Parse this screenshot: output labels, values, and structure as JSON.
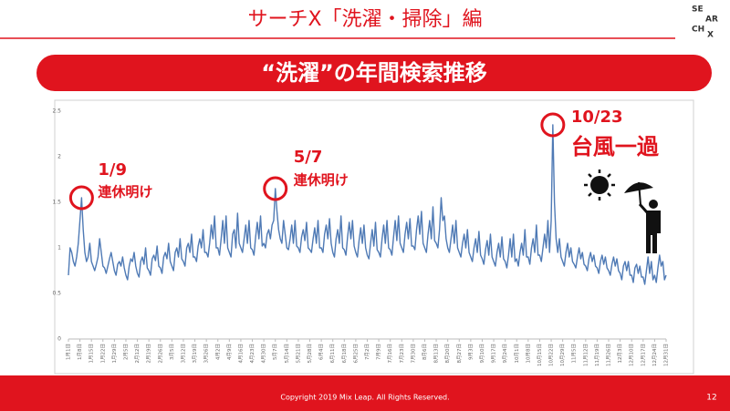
{
  "slide": {
    "title": "サーチX「洗濯・掃除」編",
    "logo": [
      "SE",
      "AR",
      "CH",
      "X"
    ],
    "copyright": "Copyright 2019 Mix Leap. All Rights Reserved.",
    "page": "12"
  },
  "chart_data": {
    "type": "line",
    "title": "“洗濯”の年間検索推移",
    "color": "#4f7ab5",
    "ylim": [
      0,
      2.5
    ],
    "yticks": [
      0,
      0.5,
      1,
      1.5,
      2,
      2.5
    ],
    "grid": false,
    "categories": [
      "1月1日",
      null,
      null,
      null,
      null,
      null,
      null,
      "1月8日",
      null,
      null,
      null,
      null,
      null,
      null,
      "1月15日",
      null,
      null,
      null,
      null,
      null,
      null,
      "1月22日",
      null,
      null,
      null,
      null,
      null,
      null,
      "1月29日",
      null,
      null,
      null,
      null,
      null,
      null,
      "2月5日",
      null,
      null,
      null,
      null,
      null,
      null,
      "2月12日",
      null,
      null,
      null,
      null,
      null,
      null,
      "2月19日",
      null,
      null,
      null,
      null,
      null,
      null,
      "2月26日",
      null,
      null,
      null,
      null,
      null,
      null,
      "3月5日",
      null,
      null,
      null,
      null,
      null,
      null,
      "3月12日",
      null,
      null,
      null,
      null,
      null,
      null,
      "3月19日",
      null,
      null,
      null,
      null,
      null,
      null,
      "3月26日",
      null,
      null,
      null,
      null,
      null,
      null,
      "4月2日",
      null,
      null,
      null,
      null,
      null,
      null,
      "4月9日",
      null,
      null,
      null,
      null,
      null,
      null,
      "4月16日",
      null,
      null,
      null,
      null,
      null,
      null,
      "4月23日",
      null,
      null,
      null,
      null,
      null,
      null,
      "4月30日",
      null,
      null,
      null,
      null,
      null,
      null,
      "5月7日",
      null,
      null,
      null,
      null,
      null,
      null,
      "5月14日",
      null,
      null,
      null,
      null,
      null,
      null,
      "5月21日",
      null,
      null,
      null,
      null,
      null,
      null,
      "5月28日",
      null,
      null,
      null,
      null,
      null,
      null,
      "6月4日",
      null,
      null,
      null,
      null,
      null,
      null,
      "6月11日",
      null,
      null,
      null,
      null,
      null,
      null,
      "6月18日",
      null,
      null,
      null,
      null,
      null,
      null,
      "6月25日",
      null,
      null,
      null,
      null,
      null,
      null,
      "7月2日",
      null,
      null,
      null,
      null,
      null,
      null,
      "7月9日",
      null,
      null,
      null,
      null,
      null,
      null,
      "7月16日",
      null,
      null,
      null,
      null,
      null,
      null,
      "7月23日",
      null,
      null,
      null,
      null,
      null,
      null,
      "7月30日",
      null,
      null,
      null,
      null,
      null,
      null,
      "8月6日",
      null,
      null,
      null,
      null,
      null,
      null,
      "8月13日",
      null,
      null,
      null,
      null,
      null,
      null,
      "8月20日",
      null,
      null,
      null,
      null,
      null,
      null,
      "8月27日",
      null,
      null,
      null,
      null,
      null,
      null,
      "9月3日",
      null,
      null,
      null,
      null,
      null,
      null,
      "9月10日",
      null,
      null,
      null,
      null,
      null,
      null,
      "9月17日",
      null,
      null,
      null,
      null,
      null,
      null,
      "9月24日",
      null,
      null,
      null,
      null,
      null,
      null,
      "10月1日",
      null,
      null,
      null,
      null,
      null,
      null,
      "10月8日",
      null,
      null,
      null,
      null,
      null,
      null,
      "10月15日",
      null,
      null,
      null,
      null,
      null,
      null,
      "10月22日",
      null,
      null,
      null,
      null,
      null,
      null,
      "10月29日",
      null,
      null,
      null,
      null,
      null,
      null,
      "11月5日",
      null,
      null,
      null,
      null,
      null,
      null,
      "11月12日",
      null,
      null,
      null,
      null,
      null,
      null,
      "11月19日",
      null,
      null,
      null,
      null,
      null,
      null,
      "11月26日",
      null,
      null,
      null,
      null,
      null,
      null,
      "12月3日",
      null,
      null,
      null,
      null,
      null,
      null,
      "12月10日",
      null,
      null,
      null,
      null,
      null,
      null,
      "12月17日",
      null,
      null,
      null,
      null,
      null,
      null,
      "12月24日",
      null,
      null,
      null,
      null,
      null,
      null,
      "12月31日"
    ],
    "values": [
      0.7,
      1.0,
      0.95,
      0.85,
      0.8,
      0.9,
      1.05,
      1.3,
      1.55,
      1.2,
      0.95,
      0.85,
      0.9,
      1.05,
      0.85,
      0.8,
      0.75,
      0.82,
      0.9,
      1.1,
      0.95,
      0.8,
      0.78,
      0.72,
      0.8,
      0.88,
      0.95,
      0.85,
      0.75,
      0.7,
      0.82,
      0.85,
      0.8,
      0.9,
      0.78,
      0.7,
      0.65,
      0.8,
      0.88,
      0.85,
      0.95,
      0.8,
      0.72,
      0.68,
      0.85,
      0.9,
      0.82,
      1.0,
      0.78,
      0.75,
      0.7,
      0.88,
      0.92,
      0.86,
      1.02,
      0.8,
      0.78,
      0.72,
      0.9,
      0.95,
      0.88,
      1.05,
      0.85,
      0.8,
      0.75,
      0.95,
      1.0,
      0.9,
      1.1,
      0.88,
      0.85,
      0.8,
      1.0,
      1.05,
      0.95,
      1.15,
      0.9,
      0.9,
      0.85,
      1.02,
      1.1,
      1.0,
      1.2,
      0.95,
      0.95,
      0.9,
      1.05,
      1.25,
      1.1,
      1.35,
      1.0,
      1.0,
      0.92,
      1.1,
      1.3,
      1.05,
      1.35,
      1.0,
      0.95,
      0.9,
      1.15,
      1.2,
      1.0,
      1.38,
      1.05,
      1.0,
      0.95,
      1.1,
      1.25,
      1.05,
      1.3,
      1.0,
      0.98,
      0.92,
      1.12,
      1.28,
      1.1,
      1.35,
      1.02,
      1.05,
      1.0,
      1.15,
      1.2,
      1.1,
      1.25,
      1.3,
      1.65,
      1.4,
      1.2,
      1.1,
      1.05,
      1.3,
      1.15,
      1.0,
      0.98,
      1.1,
      1.25,
      1.05,
      1.3,
      1.02,
      1.0,
      0.95,
      1.12,
      1.2,
      1.08,
      1.28,
      1.0,
      0.98,
      0.95,
      1.1,
      1.22,
      1.05,
      1.3,
      1.0,
      1.0,
      0.95,
      1.15,
      1.25,
      1.1,
      1.32,
      1.05,
      0.95,
      0.9,
      1.1,
      1.2,
      1.05,
      1.35,
      1.0,
      0.98,
      0.92,
      1.12,
      1.28,
      1.1,
      1.3,
      1.02,
      0.95,
      0.9,
      1.08,
      1.22,
      1.05,
      1.25,
      1.0,
      0.92,
      0.88,
      1.05,
      1.2,
      1.02,
      1.28,
      0.98,
      0.95,
      0.9,
      1.1,
      1.25,
      1.05,
      1.3,
      1.0,
      0.98,
      0.92,
      1.12,
      1.3,
      1.08,
      1.35,
      1.05,
      1.0,
      0.95,
      1.15,
      1.28,
      1.1,
      1.32,
      1.02,
      1.02,
      0.98,
      1.2,
      1.35,
      1.15,
      1.4,
      1.05,
      1.0,
      0.95,
      1.15,
      1.3,
      1.1,
      1.45,
      1.08,
      1.05,
      1.0,
      1.2,
      1.55,
      1.3,
      1.35,
      1.1,
      1.0,
      0.95,
      1.1,
      1.25,
      1.05,
      1.3,
      1.0,
      0.95,
      0.9,
      1.05,
      1.15,
      1.0,
      1.2,
      0.95,
      0.9,
      0.85,
      1.0,
      1.1,
      0.95,
      1.18,
      0.92,
      0.88,
      0.82,
      0.98,
      1.08,
      0.92,
      1.15,
      0.9,
      0.85,
      0.8,
      0.95,
      1.05,
      0.9,
      1.12,
      0.88,
      0.85,
      0.78,
      0.92,
      1.1,
      0.9,
      1.15,
      0.85,
      0.88,
      0.8,
      0.95,
      1.05,
      0.92,
      1.2,
      0.9,
      0.9,
      0.82,
      1.0,
      1.1,
      0.95,
      1.25,
      0.92,
      0.92,
      0.85,
      1.0,
      1.15,
      1.0,
      1.3,
      0.95,
      1.3,
      2.35,
      1.5,
      1.1,
      0.95,
      1.1,
      0.9,
      0.85,
      0.8,
      0.95,
      1.05,
      0.9,
      1.0,
      0.85,
      0.82,
      0.78,
      0.9,
      1.0,
      0.88,
      0.95,
      0.82,
      0.8,
      0.75,
      0.88,
      0.95,
      0.85,
      0.92,
      0.8,
      0.78,
      0.72,
      0.85,
      0.92,
      0.82,
      0.9,
      0.78,
      0.75,
      0.7,
      0.82,
      0.9,
      0.8,
      0.88,
      0.75,
      0.72,
      0.65,
      0.8,
      0.85,
      0.75,
      0.85,
      0.7,
      0.7,
      0.62,
      0.78,
      0.82,
      0.72,
      0.8,
      0.68,
      0.68,
      0.6,
      0.75,
      0.9,
      0.72,
      0.85,
      0.65,
      0.7,
      0.62,
      0.78,
      0.92,
      0.8,
      0.85,
      0.65,
      0.7
    ],
    "annotations": [
      {
        "label": "1/9",
        "text": "連休明け"
      },
      {
        "label": "5/7",
        "text": "連休明け"
      },
      {
        "label": "10/23",
        "text": "台風一過"
      }
    ]
  }
}
